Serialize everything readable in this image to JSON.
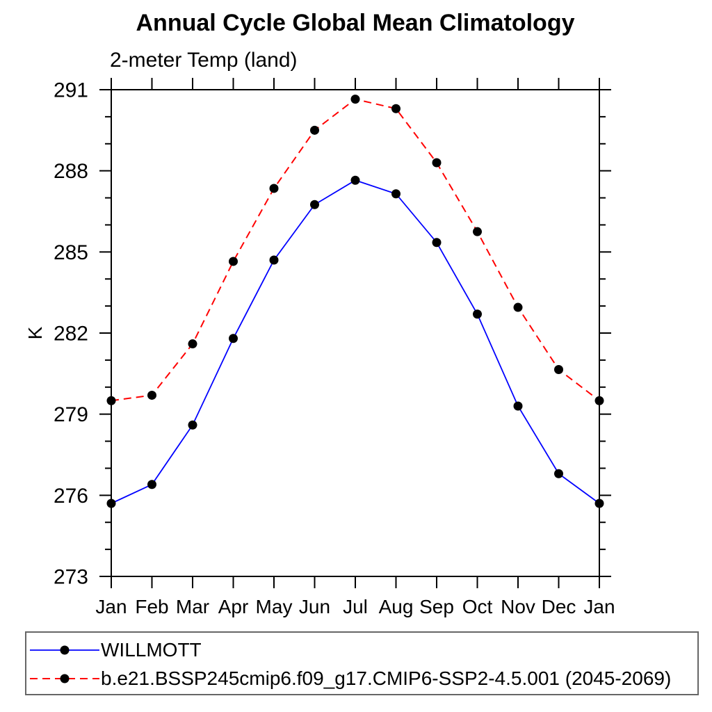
{
  "chart_data": {
    "type": "line",
    "title": "Annual Cycle Global Mean Climatology",
    "subtitle": "2-meter Temp (land)",
    "ylabel": "K",
    "xlabel": "",
    "categories": [
      "Jan",
      "Feb",
      "Mar",
      "Apr",
      "May",
      "Jun",
      "Jul",
      "Aug",
      "Sep",
      "Oct",
      "Nov",
      "Dec",
      "Jan"
    ],
    "ylim": [
      273,
      291
    ],
    "ytick_major": [
      273,
      276,
      279,
      282,
      285,
      288,
      291
    ],
    "ytick_minor_step": 1,
    "grid": false,
    "legend_position": "bottom-left boxed",
    "marker_color": "#000000",
    "axis_color": "#000000",
    "series": [
      {
        "name": "WILLMOTT",
        "color": "#0000ff",
        "style": "solid",
        "marker": "circle",
        "values": [
          275.7,
          276.4,
          278.6,
          281.8,
          284.7,
          286.75,
          287.65,
          287.15,
          285.35,
          282.7,
          279.3,
          276.8,
          275.7
        ]
      },
      {
        "name": "b.e21.BSSP245cmip6.f09_g17.CMIP6-SSP2-4.5.001 (2045-2069)",
        "color": "#ff0000",
        "style": "dashed",
        "marker": "circle",
        "values": [
          279.5,
          279.7,
          281.6,
          284.65,
          287.35,
          289.5,
          290.65,
          290.3,
          288.3,
          285.75,
          282.95,
          280.65,
          279.5
        ]
      }
    ]
  }
}
